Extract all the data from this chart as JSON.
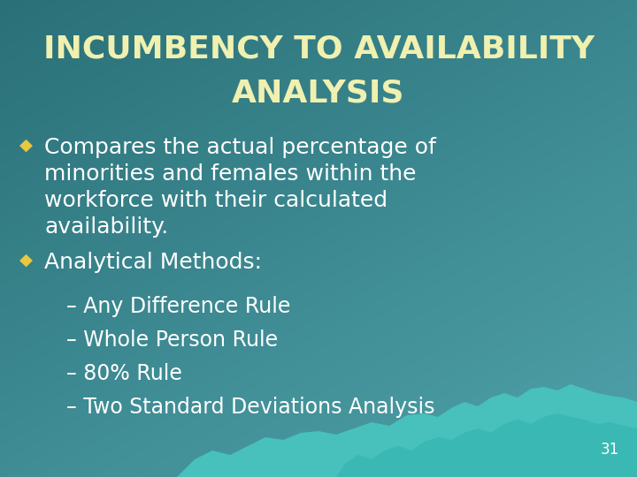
{
  "title_line1": "INCUMBENCY TO AVAILABILITY",
  "title_line2": "ANALYSIS",
  "title_color": "#f0f0b0",
  "bg_color_tl": "#2d7878",
  "bg_color_tr": "#4aa0a0",
  "bg_color_bl": "#3a9090",
  "bg_color_br": "#6abcbc",
  "wave_color1": "#4ac4c0",
  "wave_color2": "#38b0b0",
  "bullet_color": "#e8c840",
  "text_color": "#ffffff",
  "bullet1_lines": [
    "Compares the actual percentage of",
    "minorities and females within the",
    "workforce with their calculated",
    "availability."
  ],
  "bullet2": "Analytical Methods:",
  "sub_bullets": [
    "– Any Difference Rule",
    "– Whole Person Rule",
    "– 80% Rule",
    "– Two Standard Deviations Analysis"
  ],
  "page_number": "31",
  "diamond": "◆"
}
